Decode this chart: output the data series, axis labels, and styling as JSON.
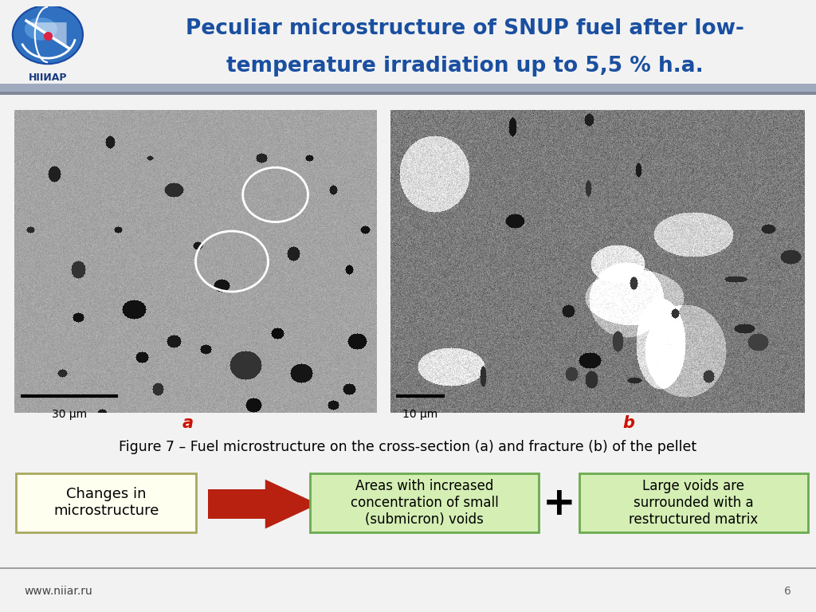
{
  "title_line1": "Peculiar microstructure of SNUP fuel after low-",
  "title_line2": "temperature irradiation up to 5,5 % h.a.",
  "title_color": "#1a4fa0",
  "header_bg_top": "#c8d4e8",
  "header_bg_bot": "#b8c8dc",
  "slide_bg": "#f2f2f2",
  "white": "#ffffff",
  "label_a": "a",
  "label_b": "b",
  "scale_a": "30 μm",
  "scale_b": "10 μm",
  "figure_caption": "Figure 7 – Fuel microstructure on the cross-section (a) and fracture (b) of the pellet",
  "box1_text": "Changes in\nmicrostructure",
  "box1_bg": "#fffff0",
  "box1_border": "#aaa860",
  "box2_text": "Areas with increased\nconcentration of small\n(submicron) voids",
  "box2_bg": "#d4eeb4",
  "box2_border": "#6aaa50",
  "box3_text": "Large voids are\nsurrounded with a\nrestructured matrix",
  "box3_bg": "#d4eeb4",
  "box3_border": "#6aaa50",
  "arrow_color": "#b82010",
  "footer_text": "www.niiar.ru",
  "page_num": "6",
  "footer_bg": "#c8ccd4",
  "separator_color": "#a0a0a0",
  "left_img_color": "#b0b4b8",
  "right_img_color": "#9898a0",
  "img_border": "#808080"
}
